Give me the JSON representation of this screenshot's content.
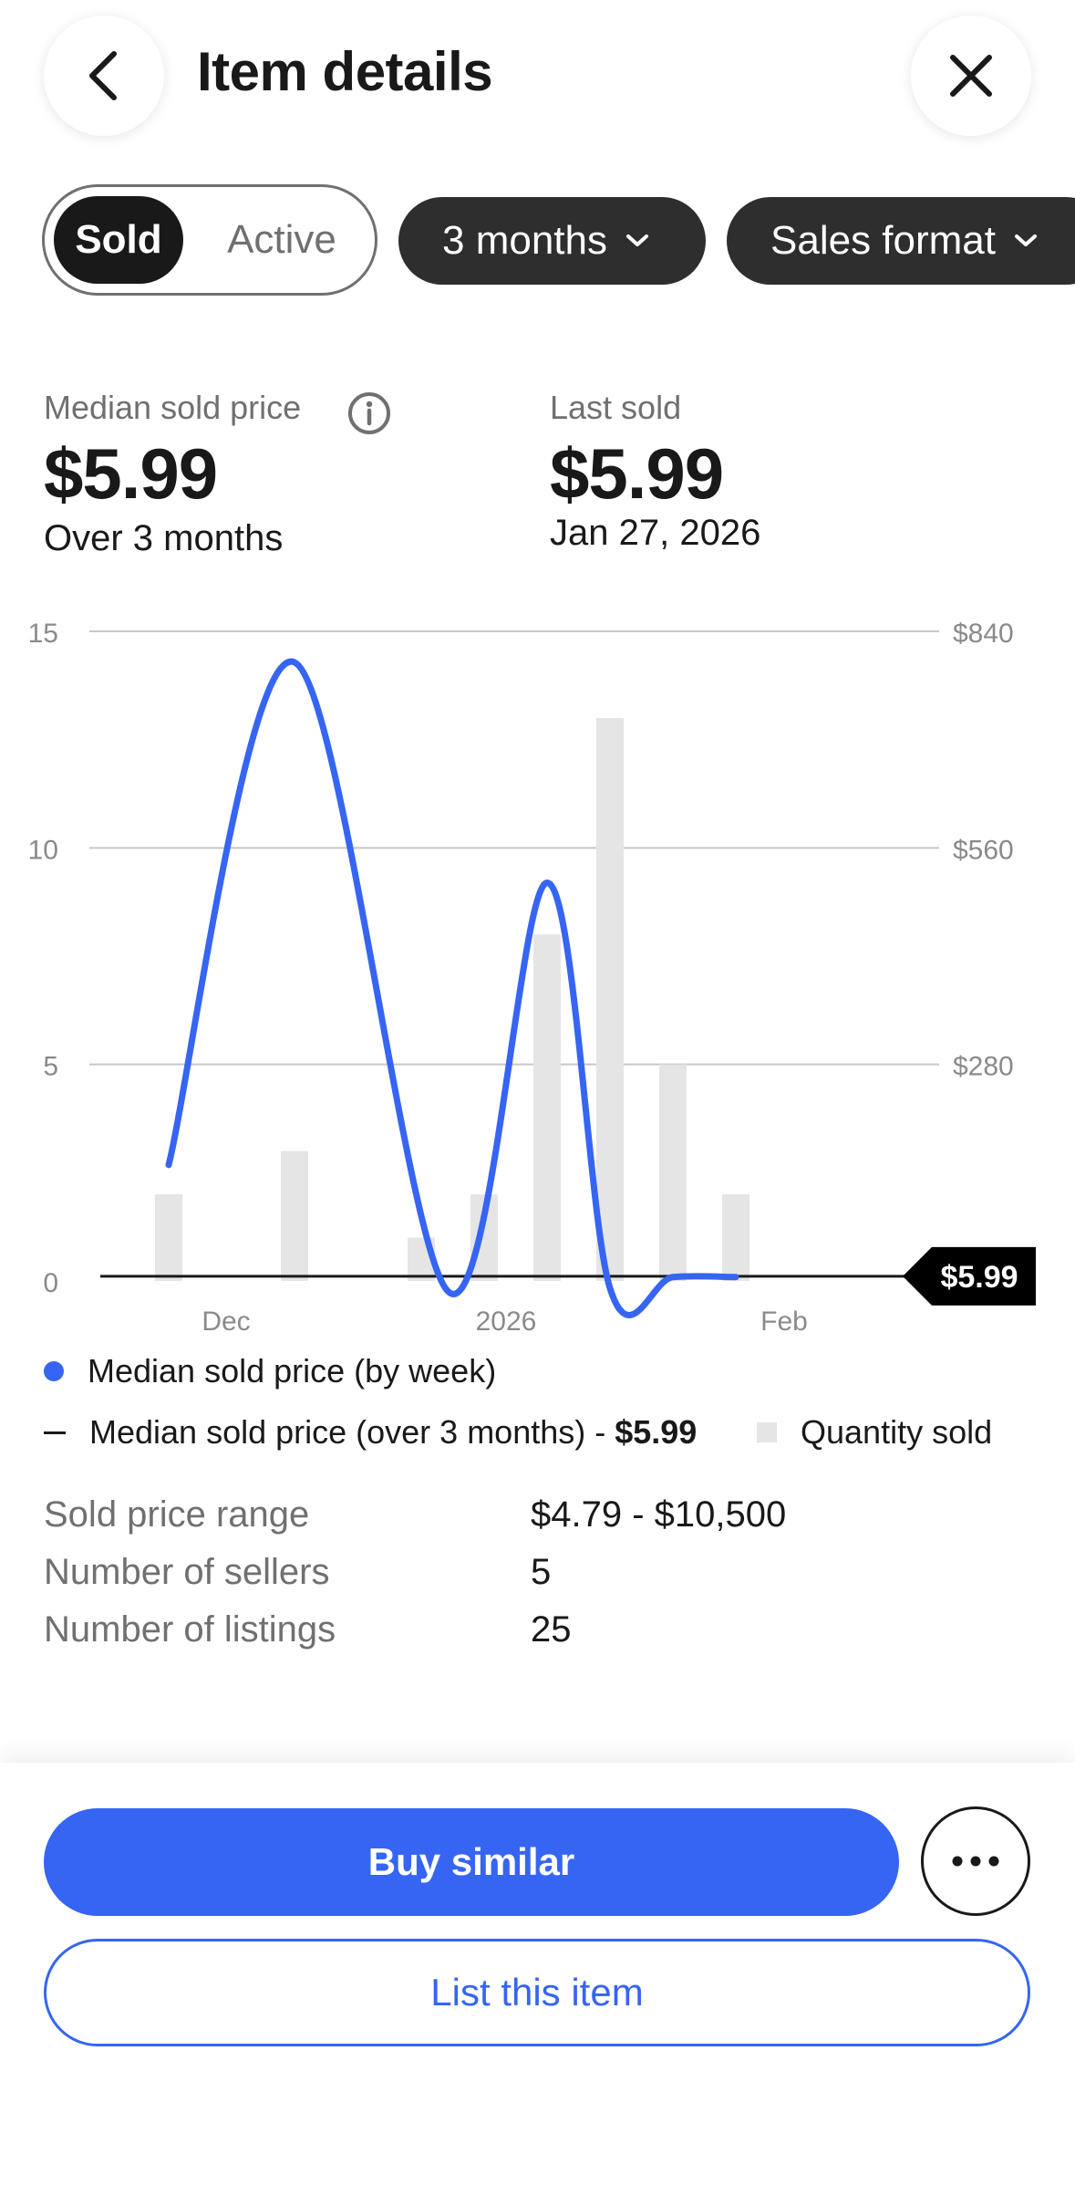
{
  "header": {
    "title": "Item details",
    "back_icon": "chevron-left-icon",
    "close_icon": "close-icon"
  },
  "filters": {
    "toggle": {
      "sold_label": "Sold",
      "active_label": "Active",
      "selected": "Sold"
    },
    "period_label": "3 months",
    "format_label": "Sales format"
  },
  "stats": {
    "median": {
      "label": "Median sold price",
      "value": "$5.99",
      "sub": "Over 3 months"
    },
    "last_sold": {
      "label": "Last sold",
      "value": "$5.99",
      "sub": "Jan 27, 2026"
    }
  },
  "chart_data": {
    "type": "bar+line",
    "x_tick_labels": [
      "Dec",
      "2026",
      "Feb"
    ],
    "y_left": {
      "ticks": [
        "0",
        "5",
        "10",
        "15"
      ],
      "range": [
        0,
        15
      ]
    },
    "y_right": {
      "ticks": [
        "$280",
        "$560",
        "$840"
      ],
      "range": [
        0,
        840
      ]
    },
    "reference_line": {
      "value": 5.99,
      "label": "$5.99"
    },
    "quantity_sold": [
      2,
      3,
      1,
      2,
      8,
      13,
      5,
      2
    ],
    "median_by_week": [
      150,
      800,
      0,
      0,
      515,
      0,
      5,
      5
    ],
    "colors": {
      "line": "#3665f3",
      "bars": "#e5e5e5",
      "reference": "#191919"
    }
  },
  "legend": {
    "weekly": "Median sold price (by week)",
    "overall_prefix": "Median sold price (over 3 months) - ",
    "overall_value": "$5.99",
    "quantity": "Quantity sold"
  },
  "details": [
    {
      "label": "Sold price range",
      "value": "$4.79 - $10,500"
    },
    {
      "label": "Number of sellers",
      "value": "5"
    },
    {
      "label": "Number of listings",
      "value": "25"
    }
  ],
  "footer": {
    "buy_label": "Buy similar",
    "list_label": "List this item",
    "more_icon": "more-horizontal-icon"
  }
}
